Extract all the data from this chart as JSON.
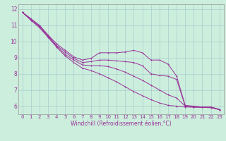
{
  "xlabel": "Windchill (Refroidissement éolien,°C)",
  "background_color": "#cceedd",
  "grid_color": "#aacccc",
  "line_color": "#993399",
  "xlim_min": -0.5,
  "xlim_max": 23.5,
  "ylim_min": 5.5,
  "ylim_max": 12.3,
  "xticks": [
    0,
    1,
    2,
    3,
    4,
    5,
    6,
    7,
    8,
    9,
    10,
    11,
    12,
    13,
    14,
    15,
    16,
    17,
    18,
    19,
    20,
    21,
    22,
    23
  ],
  "yticks": [
    6,
    7,
    8,
    9,
    10,
    11,
    12
  ],
  "series": [
    [
      11.8,
      11.4,
      11.0,
      10.4,
      9.85,
      9.45,
      9.05,
      8.85,
      8.95,
      9.3,
      9.3,
      9.3,
      9.35,
      9.45,
      9.3,
      8.85,
      8.85,
      8.6,
      7.85,
      6.05,
      6.0,
      5.95,
      5.95,
      5.8
    ],
    [
      11.8,
      11.4,
      10.95,
      10.35,
      9.75,
      9.35,
      8.95,
      8.7,
      8.75,
      8.85,
      8.85,
      8.8,
      8.75,
      8.7,
      8.5,
      8.0,
      7.9,
      7.85,
      7.65,
      6.0,
      5.95,
      5.95,
      5.95,
      5.78
    ],
    [
      11.8,
      11.35,
      10.9,
      10.3,
      9.7,
      9.2,
      8.85,
      8.55,
      8.5,
      8.5,
      8.45,
      8.3,
      8.1,
      7.85,
      7.6,
      7.3,
      7.0,
      6.7,
      6.5,
      6.0,
      5.95,
      5.93,
      5.92,
      5.78
    ],
    [
      11.8,
      11.3,
      10.85,
      10.25,
      9.65,
      9.1,
      8.7,
      8.35,
      8.2,
      8.0,
      7.75,
      7.5,
      7.2,
      6.9,
      6.65,
      6.4,
      6.2,
      6.05,
      6.0,
      5.95,
      5.93,
      5.92,
      5.9,
      5.78
    ]
  ],
  "marker_size": 1.8,
  "line_width": 0.7,
  "tick_fontsize": 5.0,
  "xlabel_fontsize": 5.5
}
